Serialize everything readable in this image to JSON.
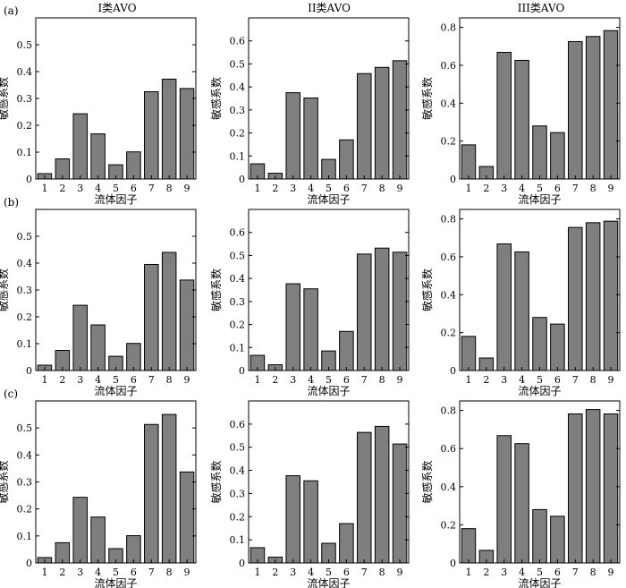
{
  "figure": {
    "column_titles": [
      "I类AVO",
      "II类AVO",
      "III类AVO"
    ],
    "row_tags": [
      "(a)",
      "(b)",
      "(c)"
    ]
  },
  "chart_data": [
    {
      "id": "a1",
      "type": "bar",
      "row": 0,
      "col": 0,
      "title": "I类AVO",
      "panel": "(a)",
      "xlabel": "流体因子",
      "ylabel": "敏感系数",
      "categories": [
        "1",
        "2",
        "3",
        "4",
        "5",
        "6",
        "7",
        "8",
        "9"
      ],
      "values": [
        0.02,
        0.075,
        0.243,
        0.168,
        0.053,
        0.101,
        0.325,
        0.372,
        0.337
      ],
      "ylim": [
        0,
        0.6
      ],
      "yticks": [
        "0",
        "0.1",
        "0.2",
        "0.3",
        "0.4",
        "0.5"
      ],
      "bar_color": "#7f7f7f"
    },
    {
      "id": "a2",
      "type": "bar",
      "row": 0,
      "col": 1,
      "title": "II类AVO",
      "panel": "",
      "xlabel": "流体因子",
      "ylabel": "敏感系数",
      "categories": [
        "1",
        "2",
        "3",
        "4",
        "5",
        "6",
        "7",
        "8",
        "9"
      ],
      "values": [
        0.066,
        0.025,
        0.375,
        0.352,
        0.085,
        0.17,
        0.458,
        0.485,
        0.514
      ],
      "ylim": [
        0,
        0.7
      ],
      "yticks": [
        "0",
        "0.1",
        "0.2",
        "0.3",
        "0.4",
        "0.5",
        "0.6"
      ],
      "bar_color": "#7f7f7f"
    },
    {
      "id": "a3",
      "type": "bar",
      "row": 0,
      "col": 2,
      "title": "III类AVO",
      "panel": "",
      "xlabel": "流体因子",
      "ylabel": "敏感系数",
      "categories": [
        "1",
        "2",
        "3",
        "4",
        "5",
        "6",
        "7",
        "8",
        "9"
      ],
      "values": [
        0.18,
        0.066,
        0.668,
        0.626,
        0.28,
        0.245,
        0.725,
        0.752,
        0.783
      ],
      "ylim": [
        0,
        0.85
      ],
      "yticks": [
        "0",
        "0.2",
        "0.4",
        "0.6",
        "0.8"
      ],
      "bar_color": "#7f7f7f"
    },
    {
      "id": "b1",
      "type": "bar",
      "row": 1,
      "col": 0,
      "title": "",
      "panel": "(b)",
      "xlabel": "流体因子",
      "ylabel": "敏感系数",
      "categories": [
        "1",
        "2",
        "3",
        "4",
        "5",
        "6",
        "7",
        "8",
        "9"
      ],
      "values": [
        0.02,
        0.075,
        0.243,
        0.17,
        0.053,
        0.101,
        0.395,
        0.44,
        0.337
      ],
      "ylim": [
        0,
        0.6
      ],
      "yticks": [
        "0",
        "0.1",
        "0.2",
        "0.3",
        "0.4",
        "0.5"
      ],
      "bar_color": "#7f7f7f"
    },
    {
      "id": "b2",
      "type": "bar",
      "row": 1,
      "col": 1,
      "title": "",
      "panel": "",
      "xlabel": "流体因子",
      "ylabel": "敏感系数",
      "categories": [
        "1",
        "2",
        "3",
        "4",
        "5",
        "6",
        "7",
        "8",
        "9"
      ],
      "values": [
        0.066,
        0.025,
        0.377,
        0.355,
        0.085,
        0.17,
        0.506,
        0.532,
        0.514
      ],
      "ylim": [
        0,
        0.7
      ],
      "yticks": [
        "0",
        "0.1",
        "0.2",
        "0.3",
        "0.4",
        "0.5",
        "0.6"
      ],
      "bar_color": "#7f7f7f"
    },
    {
      "id": "b3",
      "type": "bar",
      "row": 1,
      "col": 2,
      "title": "",
      "panel": "",
      "xlabel": "流体因子",
      "ylabel": "敏感系数",
      "categories": [
        "1",
        "2",
        "3",
        "4",
        "5",
        "6",
        "7",
        "8",
        "9"
      ],
      "values": [
        0.18,
        0.066,
        0.668,
        0.626,
        0.28,
        0.245,
        0.755,
        0.78,
        0.788
      ],
      "ylim": [
        0,
        0.85
      ],
      "yticks": [
        "0",
        "0.2",
        "0.4",
        "0.6",
        "0.8"
      ],
      "bar_color": "#7f7f7f"
    },
    {
      "id": "c1",
      "type": "bar",
      "row": 2,
      "col": 0,
      "title": "",
      "panel": "(c)",
      "xlabel": "流体因子",
      "ylabel": "敏感系数",
      "categories": [
        "1",
        "2",
        "3",
        "4",
        "5",
        "6",
        "7",
        "8",
        "9"
      ],
      "values": [
        0.02,
        0.075,
        0.243,
        0.17,
        0.053,
        0.101,
        0.513,
        0.55,
        0.337
      ],
      "ylim": [
        0,
        0.6
      ],
      "yticks": [
        "0",
        "0.1",
        "0.2",
        "0.3",
        "0.4",
        "0.5"
      ],
      "bar_color": "#7f7f7f"
    },
    {
      "id": "c2",
      "type": "bar",
      "row": 2,
      "col": 1,
      "title": "",
      "panel": "",
      "xlabel": "流体因子",
      "ylabel": "敏感系数",
      "categories": [
        "1",
        "2",
        "3",
        "4",
        "5",
        "6",
        "7",
        "8",
        "9"
      ],
      "values": [
        0.066,
        0.025,
        0.377,
        0.355,
        0.085,
        0.17,
        0.564,
        0.59,
        0.514
      ],
      "ylim": [
        0,
        0.7
      ],
      "yticks": [
        "0",
        "0.1",
        "0.2",
        "0.3",
        "0.4",
        "0.5",
        "0.6"
      ],
      "bar_color": "#7f7f7f"
    },
    {
      "id": "c3",
      "type": "bar",
      "row": 2,
      "col": 2,
      "title": "",
      "panel": "",
      "xlabel": "流体因子",
      "ylabel": "敏感系数",
      "categories": [
        "1",
        "2",
        "3",
        "4",
        "5",
        "6",
        "7",
        "8",
        "9"
      ],
      "values": [
        0.18,
        0.066,
        0.668,
        0.626,
        0.28,
        0.245,
        0.782,
        0.805,
        0.782
      ],
      "ylim": [
        0,
        0.85
      ],
      "yticks": [
        "0",
        "0.2",
        "0.4",
        "0.6",
        "0.8"
      ],
      "bar_color": "#7f7f7f"
    }
  ]
}
